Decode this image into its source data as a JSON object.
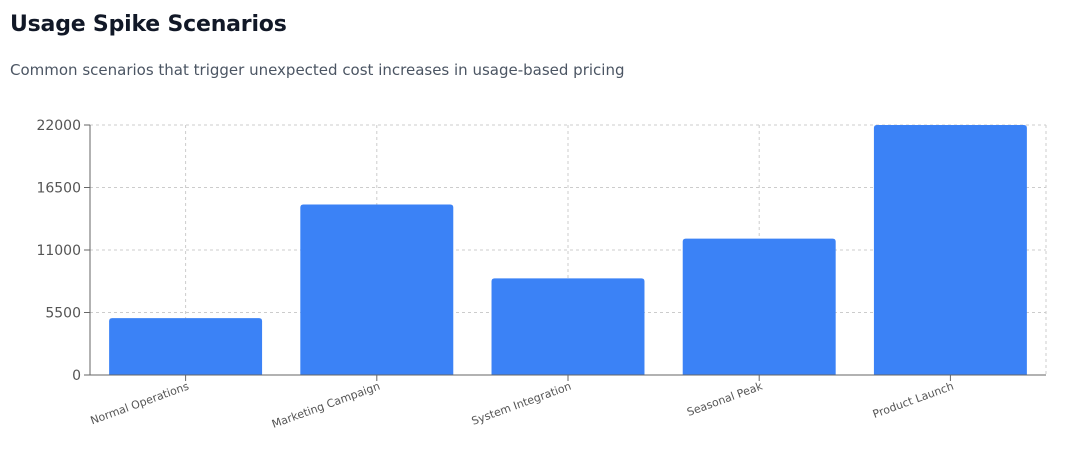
{
  "header": {
    "title": "Usage Spike Scenarios",
    "subtitle": "Common scenarios that trigger unexpected cost increases in usage-based pricing"
  },
  "chart_data": {
    "type": "bar",
    "title": "Usage Spike Scenarios",
    "categories": [
      "Normal Operations",
      "Marketing Campaign",
      "System Integration",
      "Seasonal Peak",
      "Product Launch"
    ],
    "series": [
      {
        "values": [
          5000,
          15000,
          8500,
          12000,
          22000
        ]
      }
    ],
    "yticks": [
      0,
      5500,
      11000,
      16500,
      22000
    ],
    "ylim": [
      0,
      22000
    ],
    "xlabel": "",
    "ylabel": "",
    "grid": true,
    "colors": {
      "bar": "#3b82f6",
      "grid": "#cccccc",
      "axis": "#666666"
    }
  }
}
